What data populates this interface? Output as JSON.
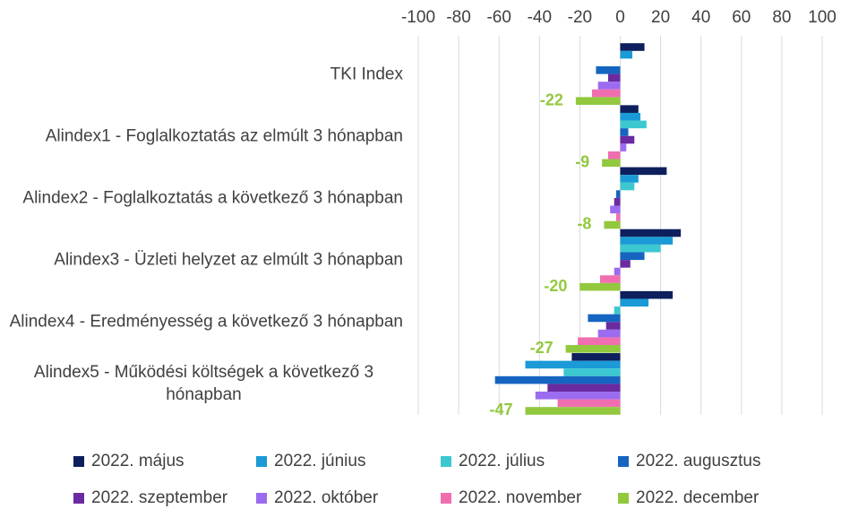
{
  "chart_data": {
    "type": "hbar",
    "categories": [
      "TKI Index",
      "Alindex1 - Foglalkoztatás az elmúlt 3 hónapban",
      "Alindex2 -  Foglalkoztatás a következő 3 hónapban",
      "Alindex3 - Üzleti helyzet  az elmúlt 3 hónapban",
      "Alindex4 - Eredményesség a következő 3 hónapban",
      "Alindex5 - Működési költségek a következő 3 hónapban"
    ],
    "series": [
      {
        "name": "2022. május",
        "color": "#0d1f5c",
        "values": [
          12,
          9,
          23,
          30,
          26,
          -24
        ]
      },
      {
        "name": "2022. június",
        "color": "#1a9ad6",
        "values": [
          6,
          10,
          9,
          26,
          14,
          -47
        ]
      },
      {
        "name": "2022. július",
        "color": "#3cc8d0",
        "values": [
          0,
          13,
          7,
          20,
          -3,
          -28
        ]
      },
      {
        "name": "2022. augusztus",
        "color": "#1565c0",
        "values": [
          -12,
          4,
          -2,
          12,
          -16,
          -62
        ]
      },
      {
        "name": "2022. szeptember",
        "color": "#6a2aa0",
        "values": [
          -6,
          7,
          -3,
          5,
          -7,
          -36
        ]
      },
      {
        "name": "2022. október",
        "color": "#9b6cf0",
        "values": [
          -11,
          3,
          -5,
          -3,
          -11,
          -42
        ]
      },
      {
        "name": "2022. november",
        "color": "#f06eb0",
        "values": [
          -14,
          -6,
          -2,
          -10,
          -21,
          -31
        ]
      },
      {
        "name": "2022. december",
        "color": "#92c83e",
        "values": [
          -22,
          -9,
          -8,
          -20,
          -27,
          -47
        ],
        "data_labels": true
      }
    ],
    "xlim": [
      -100,
      100
    ],
    "xticks": [
      -100,
      -80,
      -60,
      -40,
      -20,
      0,
      20,
      40,
      60,
      80,
      100
    ],
    "grid": true,
    "legend": "bottom"
  }
}
